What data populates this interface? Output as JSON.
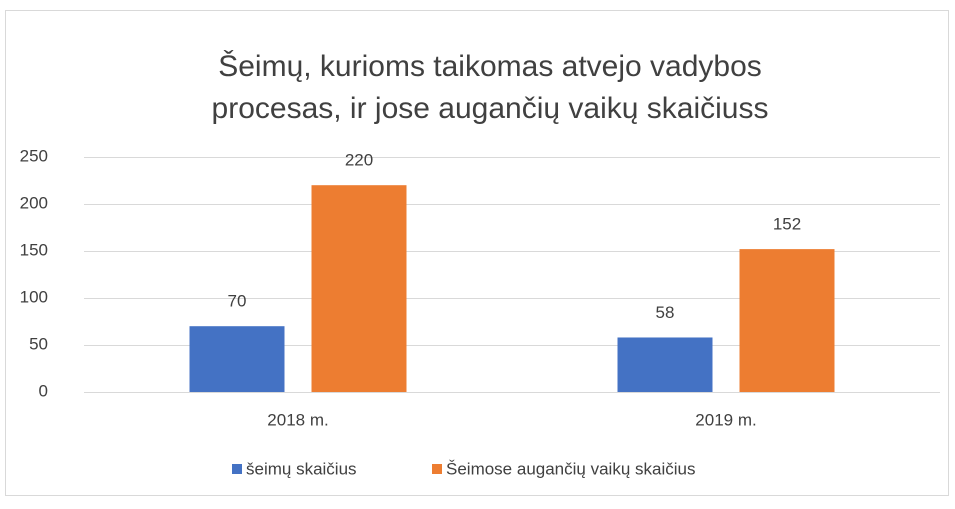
{
  "chart_data": {
    "type": "bar",
    "title": [
      "Šeimų, kurioms taikomas atvejo vadybos",
      "procesas, ir jose augančių vaikų skaičiuss"
    ],
    "categories": [
      "2018 m.",
      "2019 m."
    ],
    "series": [
      {
        "name": "šeimų skaičius",
        "color": "#4472c4",
        "values": [
          70,
          58
        ]
      },
      {
        "name": "Šeimose augančių vaikų skaičius",
        "color": "#ed7d31",
        "values": [
          220,
          152
        ]
      }
    ],
    "ylim": [
      0,
      250
    ],
    "yticks": [
      0,
      50,
      100,
      150,
      200,
      250
    ],
    "grid": true,
    "legend": "bottom"
  }
}
